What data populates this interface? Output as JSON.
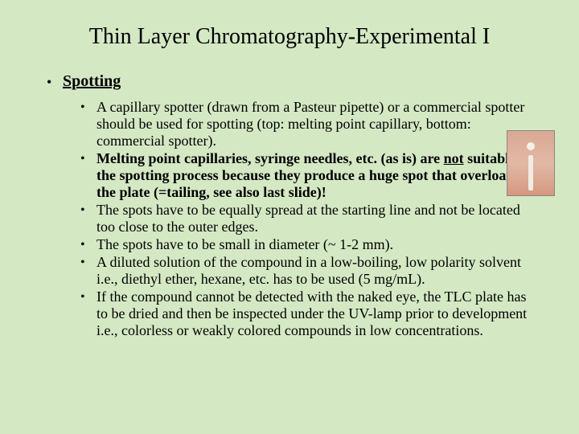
{
  "slide": {
    "background_color": "#d4e8c4",
    "title": "Thin Layer Chromatography-Experimental I",
    "section_bullet": "•",
    "section_heading": "Spotting",
    "items": [
      {
        "bullet": "•",
        "html": "A capillary spotter (drawn from a Pasteur pipette) or a commercial spotter should be used for spotting (top: melting point capillary, bottom: commercial spotter)."
      },
      {
        "bullet": "•",
        "html": "<span class=\"bold\">Melting point capillaries, syringe needles, etc. (as is) are <span class=\"underline\">not</span> suitable for the spotting process because they produce a huge spot that overloads the plate (=tailing, see also last slide)!</span>"
      },
      {
        "bullet": "•",
        "html": "The spots have to be equally spread at the starting line and not be located too close to the outer edges."
      },
      {
        "bullet": "•",
        "html": "The spots have to be small in diameter (~ 1-2 mm)."
      },
      {
        "bullet": "•",
        "html": "A diluted solution of the compound in a low-boiling, low polarity solvent i.e., diethyl ether, hexane, etc. has to be used (5 mg/mL)."
      },
      {
        "bullet": "•",
        "html": "If the compound cannot be detected with the naked eye, the TLC plate has to be dried and then be inspected under the UV-lamp prior to development i.e., colorless or weakly colored compounds in low concentrations."
      }
    ]
  }
}
